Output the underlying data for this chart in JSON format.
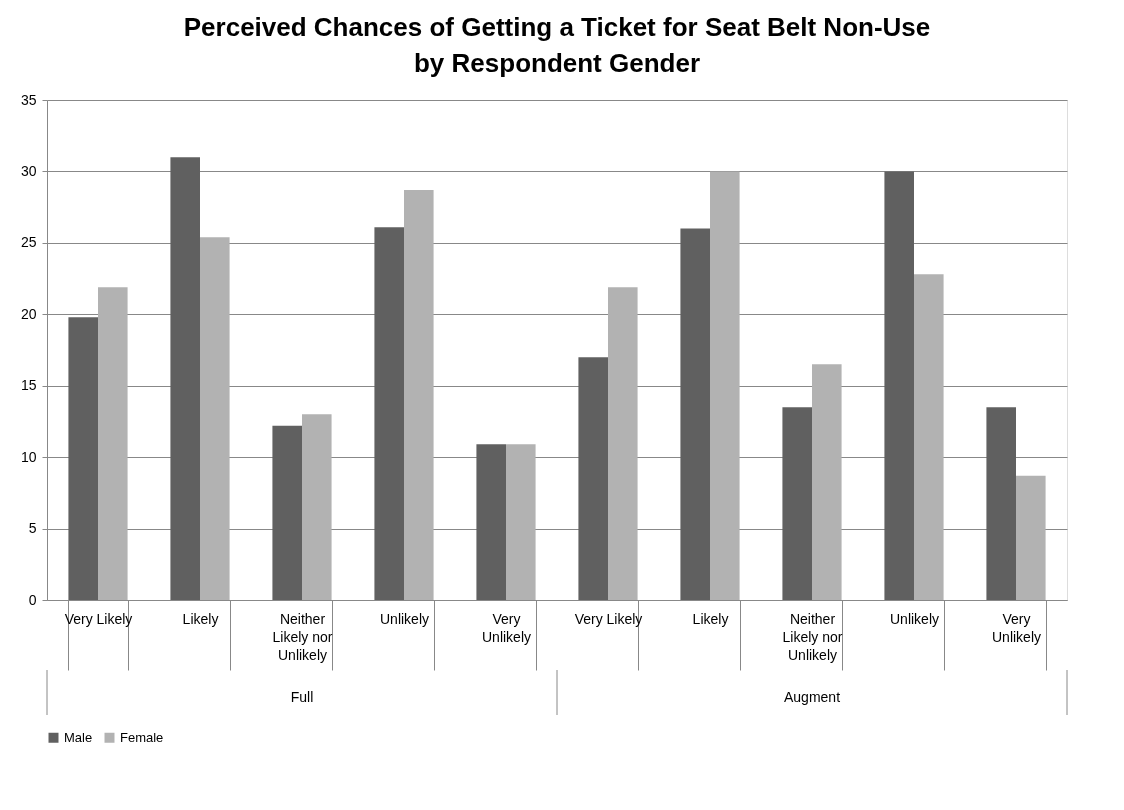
{
  "chart_data": {
    "type": "bar",
    "title": "Perceived Chances of Getting a Ticket for Seat Belt Non-Use by Respondent Gender",
    "categories": [
      "Very Likely",
      "Likely",
      "Neither Likely nor Unlikely",
      "Unlikely",
      "Very Unlikely",
      "Very Likely",
      "Likely",
      "Neither Likely nor Unlikely",
      "Unlikely",
      "Very Unlikely"
    ],
    "series": [
      {
        "name": "Male",
        "color": "#606060",
        "values": [
          19.8,
          31.0,
          12.2,
          26.1,
          10.9,
          17.0,
          26.0,
          13.5,
          30.0,
          13.5
        ]
      },
      {
        "name": "Female",
        "color": "#b2b2b2",
        "values": [
          21.9,
          25.4,
          13.0,
          28.7,
          10.9,
          21.9,
          30.0,
          16.5,
          22.8,
          8.7
        ]
      }
    ],
    "annotations": [
      "Full",
      "Augment"
    ],
    "ylim": [
      0,
      35
    ],
    "yticks": [
      0,
      5,
      10,
      15,
      20,
      25,
      30,
      35
    ],
    "grid": "y",
    "legend": "bottom"
  }
}
